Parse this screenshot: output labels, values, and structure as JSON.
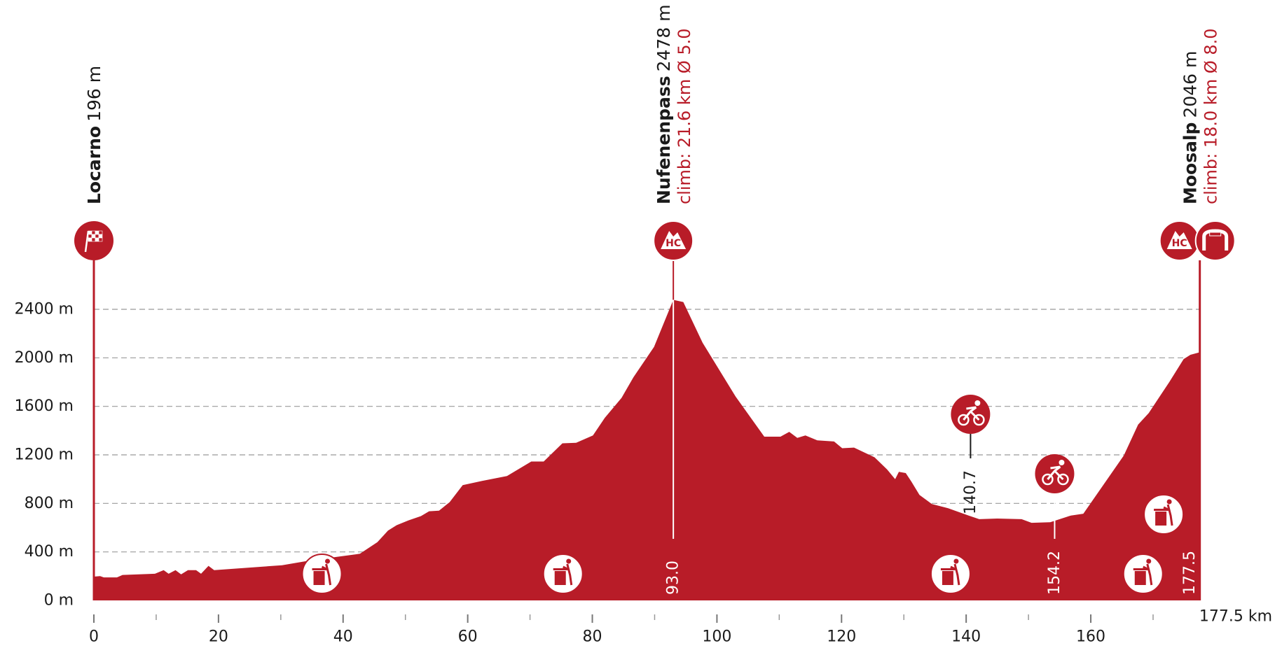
{
  "chart_data": {
    "type": "area",
    "color": "#b81c28",
    "x": [
      0,
      1,
      1.6,
      3.7,
      4.6,
      9.8,
      11.2,
      12,
      13.1,
      14,
      15.1,
      16.4,
      17.2,
      18.4,
      19.3,
      30.2,
      34.8,
      42.7,
      45.5,
      47.2,
      48.6,
      50.5,
      52.5,
      53.8,
      55.4,
      57.1,
      59.2,
      62.3,
      66.3,
      70.2,
      72.2,
      75.2,
      77.4,
      80.1,
      82,
      84.7,
      86.6,
      89.9,
      93.0,
      94.6,
      97.7,
      103,
      107.6,
      110.2,
      111.6,
      112.9,
      114.2,
      116.1,
      118.8,
      120.1,
      122,
      125.3,
      127.3,
      128.6,
      129.2,
      130.3,
      131.2,
      132.5,
      134.5,
      137.1,
      140.4,
      142.1,
      145,
      148.9,
      150.5,
      153.5,
      156.8,
      158.8,
      165.3,
      167.6,
      169.3,
      172.6,
      174.9,
      176,
      177.5
    ],
    "values": [
      196,
      200,
      190,
      190,
      210,
      220,
      250,
      220,
      250,
      215,
      250,
      250,
      220,
      285,
      250,
      290,
      330,
      385,
      480,
      575,
      620,
      660,
      695,
      735,
      740,
      810,
      950,
      985,
      1025,
      1145,
      1145,
      1295,
      1300,
      1360,
      1505,
      1670,
      1840,
      2090,
      2478,
      2460,
      2125,
      1680,
      1350,
      1350,
      1390,
      1340,
      1360,
      1320,
      1310,
      1255,
      1260,
      1180,
      1080,
      1000,
      1060,
      1050,
      980,
      870,
      795,
      760,
      700,
      670,
      675,
      670,
      640,
      645,
      700,
      715,
      1195,
      1450,
      1545,
      1800,
      1990,
      2025,
      2046
    ],
    "xlim": [
      0,
      177.5
    ],
    "ylim": [
      0,
      2700
    ],
    "xticks": [
      0,
      20,
      40,
      60,
      80,
      100,
      120,
      140,
      160
    ],
    "xminorticks": [
      10,
      30,
      50,
      70,
      90,
      110,
      130,
      150,
      170
    ],
    "yticks": [
      {
        "value": 0,
        "label": "0 m"
      },
      {
        "value": 400,
        "label": "400 m"
      },
      {
        "value": 800,
        "label": "800 m"
      },
      {
        "value": 1200,
        "label": "1200 m"
      },
      {
        "value": 1600,
        "label": "1600 m"
      },
      {
        "value": 2000,
        "label": "2000 m"
      },
      {
        "value": 2400,
        "label": "2400 m"
      }
    ],
    "grid": true,
    "distance_label": "177.5 km",
    "places": [
      {
        "km": 0,
        "name": "Locarno",
        "elevation": "196 m"
      },
      {
        "km": {
          "value": 93.0,
          "label": "93.0"
        },
        "name": "Nufenenpass",
        "elevation": "2478 m",
        "climb": "climb: 21.6 km Ø 5.0",
        "category": "HC"
      },
      {
        "km": 177.5,
        "name": "Moosalp",
        "elevation": "2046 m",
        "climb": "climb: 18.0 km Ø 8.0",
        "category": "HC"
      }
    ],
    "sprints": [
      140.7,
      154.2
    ],
    "waste_zones": [
      36.6,
      75.3,
      137.5,
      168.4,
      171.7
    ]
  }
}
